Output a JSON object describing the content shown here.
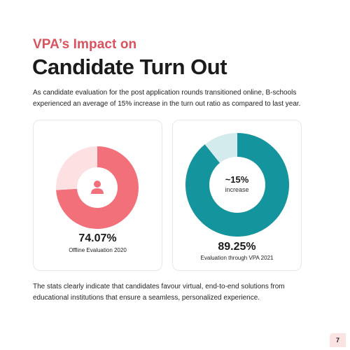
{
  "header": {
    "subtitle": "VPA’s Impact on",
    "title": "Candidate Turn Out"
  },
  "intro_text": "As candidate evaluation for the post application rounds transitioned online, B-schools experienced an average of 15% increase in the turn out ratio as compared to last year.",
  "cards": [
    {
      "percent_label": "74.07%",
      "caption": "Offline Evaluation 2020",
      "value": 74.07,
      "icon": "person-icon",
      "primary_color": "#f2707a",
      "secondary_color": "#fde0e2"
    },
    {
      "percent_label": "89.25%",
      "caption": "Evaluation through VPA 2021",
      "value": 89.25,
      "center_big": "~15%",
      "center_small": "increase",
      "primary_color": "#14949c",
      "secondary_color": "#d3ebed"
    }
  ],
  "outro_text": "The stats clearly indicate that candidates favour virtual, end-to-end solutions from educational institutions that ensure a seamless, personalized experience.",
  "page_number": "7",
  "colors": {
    "accent": "#d9535f",
    "teal": "#14949c",
    "badge": "#fbe3e4"
  }
}
